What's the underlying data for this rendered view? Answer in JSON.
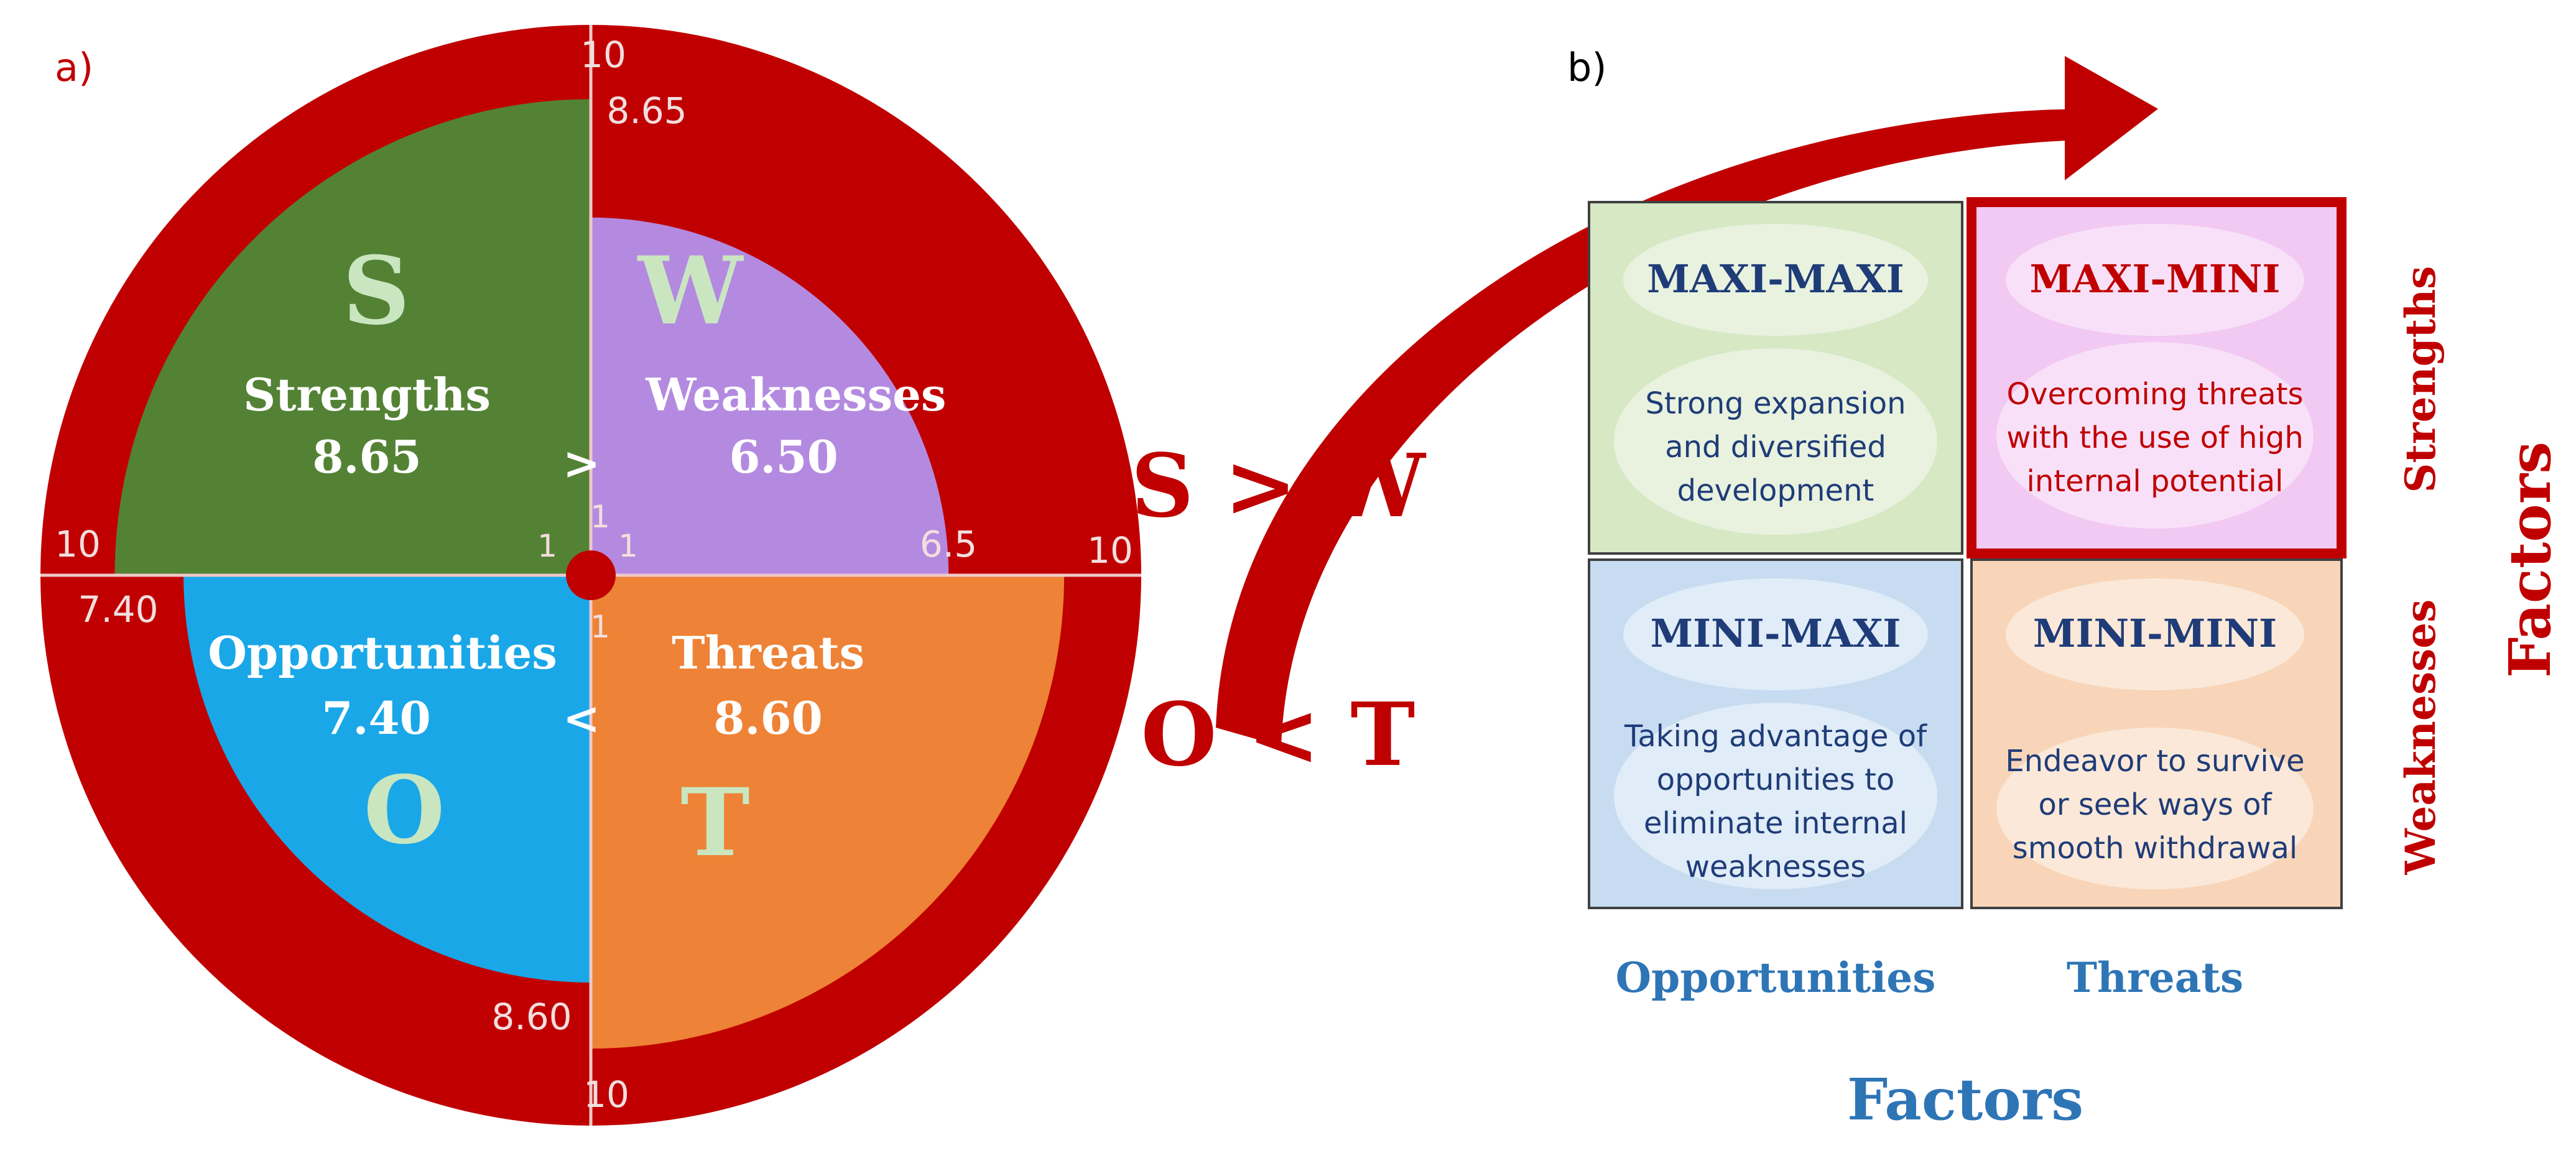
{
  "panel_a": {
    "label": "a)",
    "quadrants": {
      "strengths": {
        "letter": "S",
        "name": "Strengths",
        "value_label": "8.65",
        "value": 8.65,
        "color": "#548235"
      },
      "weaknesses": {
        "letter": "W",
        "name": "Weaknesses",
        "value_label": "6.50",
        "value": 6.5,
        "color": "#b48ae0"
      },
      "opportunities": {
        "letter": "O",
        "name": "Opportunities",
        "value_label": "7.40",
        "value": 7.4,
        "color": "#1aa7e8"
      },
      "threats": {
        "letter": "T",
        "name": "Threats",
        "value_label": "8.60",
        "value": 8.6,
        "color": "#ee8236"
      }
    },
    "scale_max": 10,
    "outer_color": "#c00000",
    "letter_color": "#c9e6c0",
    "compare_top": ">",
    "compare_bottom": "<",
    "axis_ticks": {
      "top_max": "10",
      "top_value": "8.65",
      "left_max": "10",
      "left_value": "7.40",
      "right_max": "10",
      "right_value": "6.5",
      "bottom_max": "10",
      "bottom_value": "8.60",
      "center_left": "1",
      "center_right": "1",
      "center_top": "1",
      "center_bottom": "1"
    }
  },
  "comparison": {
    "top": "S > W",
    "bottom": "O < T",
    "color": "#c00000"
  },
  "panel_b": {
    "label": "b)",
    "cells": {
      "top_left": {
        "title": "MAXI-MAXI",
        "lines": [
          "Strong  expansion",
          "and diversified",
          "development"
        ],
        "bg": "#d6e8c4",
        "title_color": "#1f3c78",
        "text_color": "#1f3c78"
      },
      "top_right": {
        "title": "MAXI-MINI",
        "lines": [
          "Overcoming threats",
          "with the use of high",
          "internal potential"
        ],
        "bg": "#f2c9f2",
        "title_color": "#c00000",
        "text_color": "#c00000"
      },
      "bottom_left": {
        "title": "MINI-MAXI",
        "lines": [
          "Taking advantage of",
          "opportunities to",
          "eliminate internal",
          "weaknesses"
        ],
        "bg": "#c7dcf0",
        "title_color": "#1f3c78",
        "text_color": "#1f3c78"
      },
      "bottom_right": {
        "title": "MINI-MINI",
        "lines": [
          "Endeavor to survive",
          "or seek ways of",
          "smooth withdrawal"
        ],
        "bg": "#f8d5b8",
        "title_color": "#1f3c78",
        "text_color": "#1f3c78"
      }
    },
    "row_labels": {
      "strengths": "Strengths",
      "weaknesses": "Weaknesses"
    },
    "row_axis_title": "Factors",
    "col_labels": {
      "opportunities": "Opportunities",
      "threats": "Threats"
    },
    "col_axis_title": "Factors",
    "row_label_color": "#c00000",
    "col_label_color": "#2e75b6"
  }
}
